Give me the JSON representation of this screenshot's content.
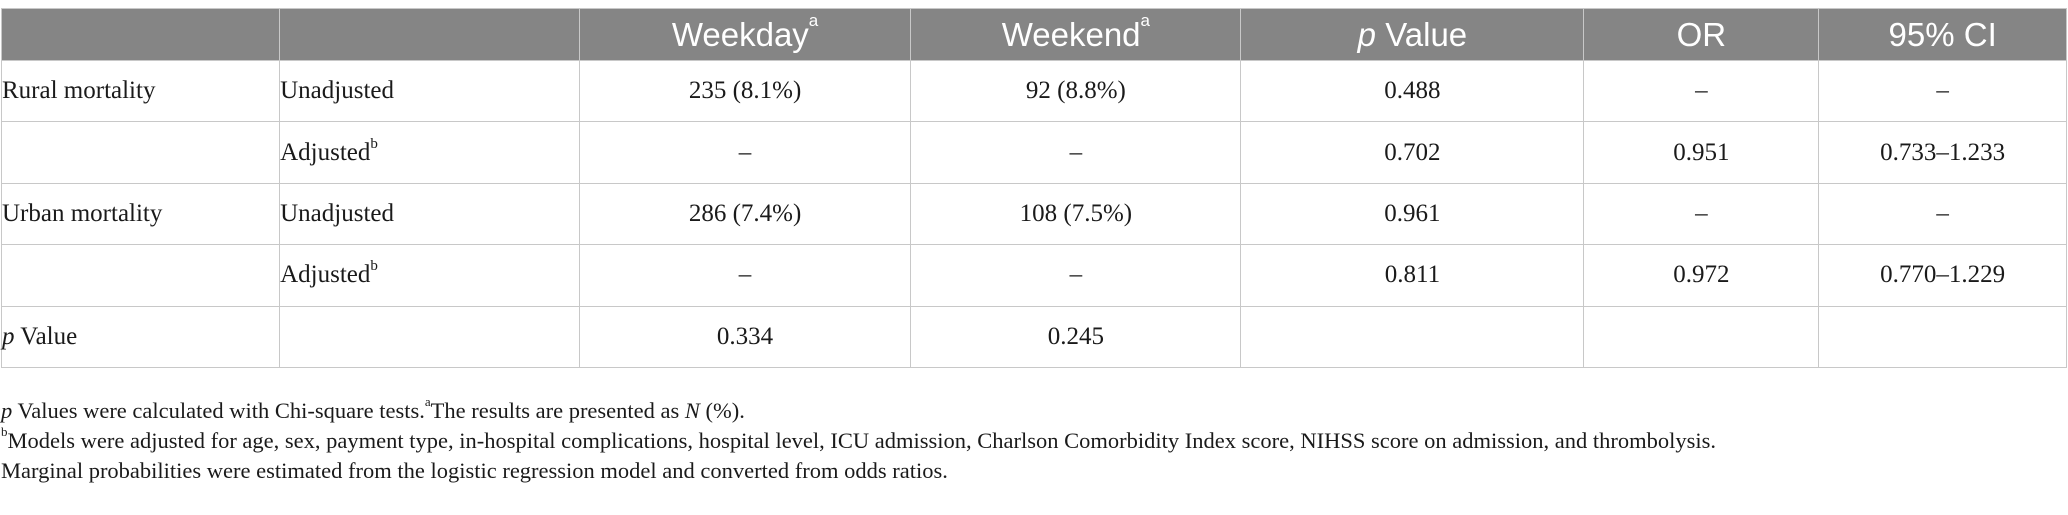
{
  "table": {
    "headers": {
      "col0": "",
      "col1": "",
      "weekday": "Weekday",
      "weekday_sup": "a",
      "weekend": "Weekend",
      "weekend_sup": "a",
      "pvalue_p": "p",
      "pvalue_rest": " Value",
      "or": "OR",
      "ci": "95% CI"
    },
    "rows": [
      {
        "group": "Rural mortality",
        "model": "Unadjusted",
        "model_sup": "",
        "weekday": "235 (8.1%)",
        "weekend": "92 (8.8%)",
        "p": "0.488",
        "or": "–",
        "ci": "–"
      },
      {
        "group": "",
        "model": "Adjusted",
        "model_sup": "b",
        "weekday": "–",
        "weekend": "–",
        "p": "0.702",
        "or": "0.951",
        "ci": "0.733–1.233"
      },
      {
        "group": "Urban mortality",
        "model": "Unadjusted",
        "model_sup": "",
        "weekday": "286 (7.4%)",
        "weekend": "108 (7.5%)",
        "p": "0.961",
        "or": "–",
        "ci": "–"
      },
      {
        "group": "",
        "model": "Adjusted",
        "model_sup": "b",
        "weekday": "–",
        "weekend": "–",
        "p": "0.811",
        "or": "0.972",
        "ci": "0.770–1.229"
      }
    ],
    "pvalue_row": {
      "label_p": "p",
      "label_rest": " Value",
      "model": "",
      "weekday": "0.334",
      "weekend": "0.245",
      "p": "",
      "or": "",
      "ci": ""
    }
  },
  "footnotes": {
    "line1_p": "p",
    "line1_a": " Values were calculated with Chi-square tests.",
    "line1_sup": "a",
    "line1_b": "The results are presented as ",
    "line1_n": "N",
    "line1_c": " (%).",
    "line2_sup": "b",
    "line2": "Models were adjusted for age, sex, payment type, in-hospital complications, hospital level, ICU admission, Charlson Comorbidity Index score, NIHSS score on admission, and thrombolysis.",
    "line3": "Marginal probabilities were estimated from the logistic regression model and converted from odds ratios."
  }
}
